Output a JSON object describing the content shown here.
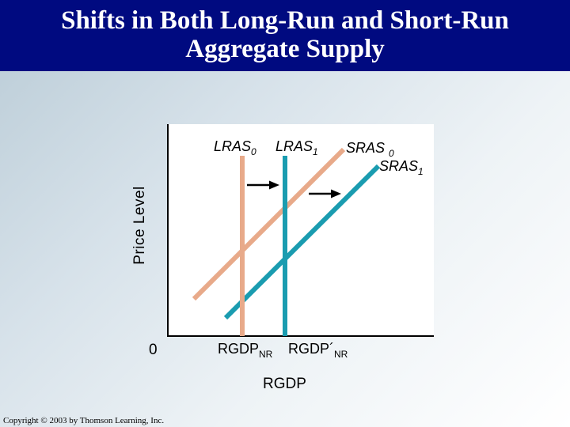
{
  "title": {
    "line1": "Shifts in Both Long-Run and Short-Run",
    "line2": "Aggregate Supply"
  },
  "axes": {
    "y_label": "Price Level",
    "x_label": "RGDP",
    "origin": "0"
  },
  "curves": {
    "lras0": {
      "name": "LRAS",
      "sub": "0",
      "color": "#e8aa8a"
    },
    "lras1": {
      "name": "LRAS",
      "sub": "1",
      "color": "#1a9cb0"
    },
    "sras0": {
      "name": "SRAS",
      "sub": "0",
      "color": "#e8aa8a"
    },
    "sras1": {
      "name": "SRAS",
      "sub": "1",
      "color": "#1a9cb0"
    }
  },
  "x_ticks": {
    "rgdp_nr": {
      "name": "RGDP",
      "sub": "NR"
    },
    "rgdp_nr_prime": {
      "name": "RGDP´",
      "sub": "NR"
    }
  },
  "footer": {
    "copyright": "Copyright © 2003 by Thomson Learning, Inc."
  }
}
